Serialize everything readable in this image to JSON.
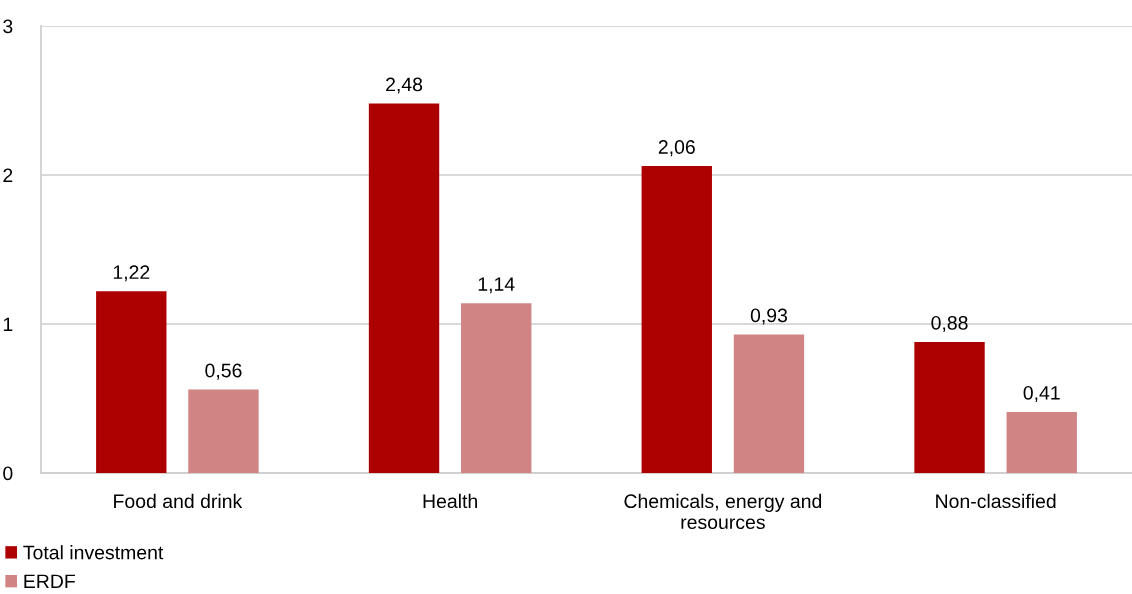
{
  "chart_data": {
    "type": "bar",
    "categories": [
      "Food and drink",
      "Health",
      "Chemicals, energy and resources",
      "Non-classified"
    ],
    "series": [
      {
        "name": "Total investment",
        "color": "#ad0000",
        "values": [
          1.22,
          2.48,
          2.06,
          0.88
        ],
        "value_labels": [
          "1,22",
          "2,48",
          "2,06",
          "0,88"
        ]
      },
      {
        "name": "ERDF",
        "color": "#d08484",
        "values": [
          0.56,
          1.14,
          0.93,
          0.41
        ],
        "value_labels": [
          "0,56",
          "1,14",
          "0,93",
          "0,41"
        ]
      }
    ],
    "ylim": [
      0,
      3
    ],
    "yticks": [
      0,
      1,
      2,
      3
    ],
    "grid": "y",
    "legend": "bottom left"
  }
}
